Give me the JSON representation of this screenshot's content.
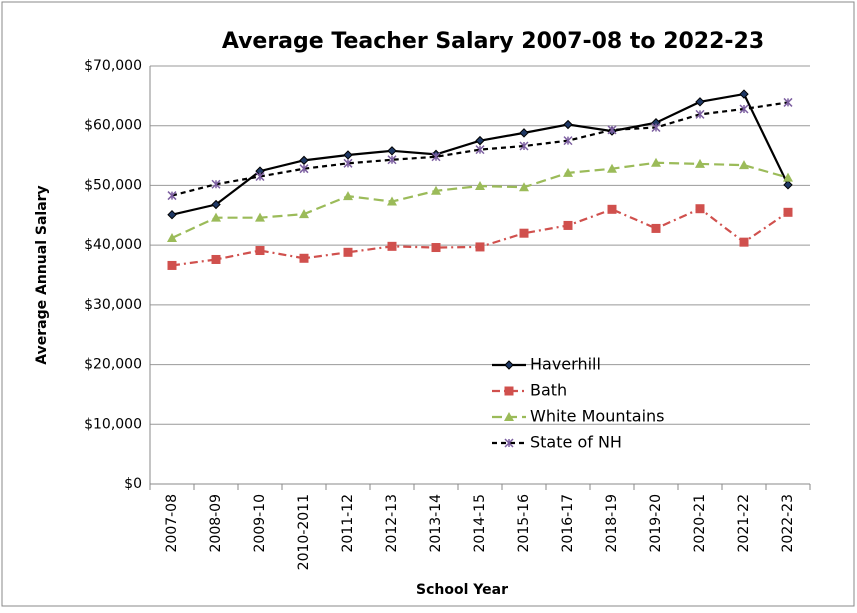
{
  "chart_data": {
    "type": "line",
    "title": "Average Teacher Salary 2007-08 to 2022-23",
    "x_label": "School Year",
    "y_label": "Average Annual Salary",
    "categories": [
      "2007-08",
      "2008-09",
      "2009-10",
      "2010-2011",
      "2011-12",
      "2012-13",
      "2013-14",
      "2014-15",
      "2015-16",
      "2016-17",
      "2018-19",
      "2019-20",
      "2020-21",
      "2021-22",
      "2022-23"
    ],
    "series": [
      {
        "name": "Haverhill",
        "color": "#000000",
        "marker": "diamond",
        "dash": "solid",
        "values": [
          45100,
          46800,
          52400,
          54200,
          55100,
          55800,
          55200,
          57500,
          58800,
          60200,
          59100,
          60500,
          64000,
          65300,
          50100
        ]
      },
      {
        "name": "Bath",
        "color": "#d0504d",
        "marker": "square",
        "dash": "dashdot",
        "values": [
          36600,
          37600,
          39100,
          37800,
          38800,
          39800,
          39600,
          39700,
          42000,
          43300,
          46000,
          42800,
          46100,
          40500,
          45500
        ]
      },
      {
        "name": "White Mountains",
        "color": "#9bbb59",
        "marker": "triangle",
        "dash": "longdash",
        "values": [
          41200,
          44600,
          44600,
          45200,
          48200,
          47300,
          49100,
          49900,
          49700,
          52100,
          52800,
          53800,
          53600,
          53400,
          51300
        ]
      },
      {
        "name": "State of NH",
        "color": "#000000",
        "marker": "star",
        "dash": "dashed",
        "values": [
          48300,
          50200,
          51500,
          52800,
          53700,
          54300,
          54800,
          56000,
          56600,
          57500,
          59300,
          59700,
          61900,
          62800,
          63900
        ]
      }
    ],
    "ylim": [
      0,
      70000
    ],
    "yticks": [
      {
        "value": 0,
        "label": "$0"
      },
      {
        "value": 10000,
        "label": "$10,000"
      },
      {
        "value": 20000,
        "label": "$20,000"
      },
      {
        "value": 30000,
        "label": "$30,000"
      },
      {
        "value": 40000,
        "label": "$40,000"
      },
      {
        "value": 50000,
        "label": "$50,000"
      },
      {
        "value": 60000,
        "label": "$60,000"
      },
      {
        "value": 70000,
        "label": "$70,000"
      }
    ],
    "grid": true,
    "legend": "center"
  }
}
